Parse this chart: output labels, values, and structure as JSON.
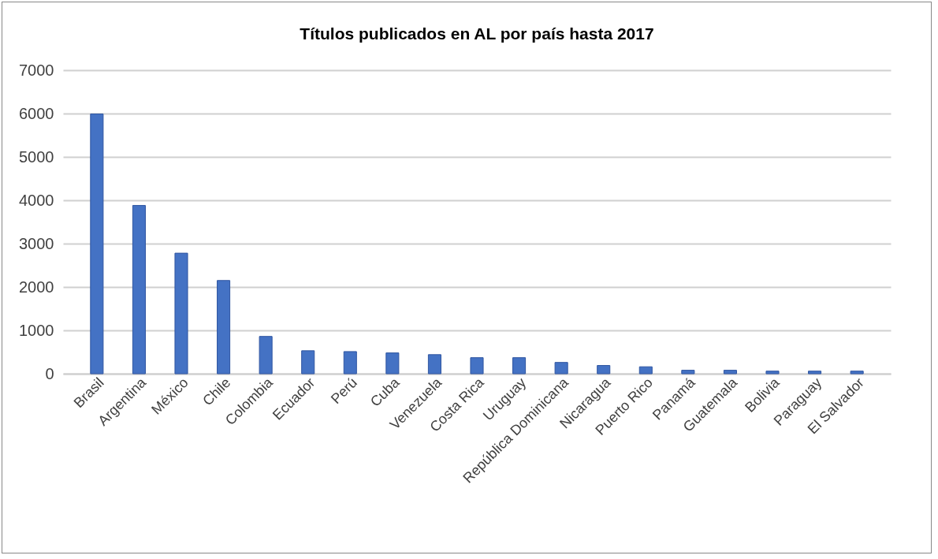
{
  "chart_data": {
    "type": "bar",
    "title": "Títulos publicados en AL  por país hasta 2017",
    "categories": [
      "Brasil",
      "Argentina",
      "México",
      "Chile",
      "Colombia",
      "Ecuador",
      "Perú",
      "Cuba",
      "Venezuela",
      "Costa Rica",
      "Uruguay",
      "República Dominicana",
      "Nicaragua",
      "Puerto Rico",
      "Panamá",
      "Guatemala",
      "Bolivia",
      "Paraguay",
      "El Salvador"
    ],
    "values": [
      5990,
      3880,
      2780,
      2150,
      860,
      530,
      510,
      480,
      440,
      370,
      370,
      260,
      190,
      160,
      80,
      80,
      60,
      60,
      60
    ],
    "color": "#4472c4",
    "ylim": [
      0,
      7000
    ],
    "yticks": [
      0,
      1000,
      2000,
      3000,
      4000,
      5000,
      6000,
      7000
    ],
    "grid": "y"
  }
}
